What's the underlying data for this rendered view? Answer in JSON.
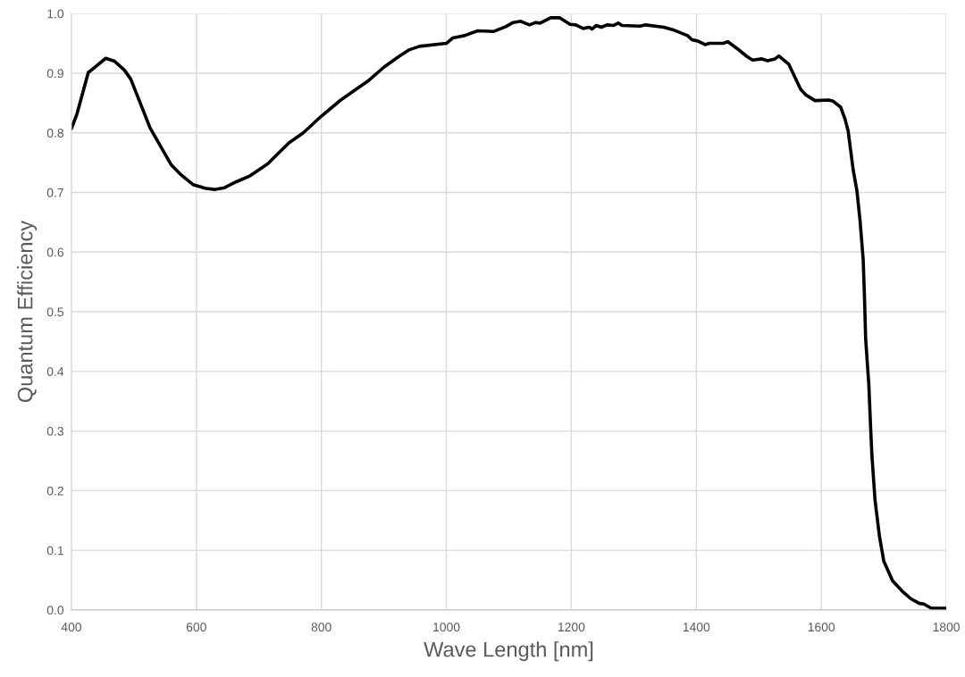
{
  "chart_data": {
    "type": "line",
    "xlabel": "Wave Length [nm]",
    "ylabel": "Quantum Efficiency",
    "series": [
      {
        "color": "#000000",
        "x": [
          400,
          409,
          427,
          433,
          455,
          469,
          485,
          495,
          526,
          560,
          574,
          595,
          614,
          629,
          645,
          664,
          686,
          714,
          748,
          771,
          800,
          831,
          857,
          876,
          900,
          924,
          940,
          957,
          1000,
          1010,
          1029,
          1050,
          1076,
          1095,
          1107,
          1119,
          1133,
          1143,
          1150,
          1167,
          1181,
          1198,
          1207,
          1219,
          1229,
          1233,
          1240,
          1248,
          1257,
          1267,
          1275,
          1281,
          1310,
          1319,
          1348,
          1362,
          1386,
          1393,
          1402,
          1414,
          1421,
          1443,
          1450,
          1467,
          1481,
          1490,
          1505,
          1514,
          1526,
          1532,
          1548,
          1567,
          1576,
          1590,
          1612,
          1619,
          1631,
          1638,
          1643,
          1651,
          1657,
          1662,
          1667,
          1669,
          1671,
          1676,
          1679,
          1681,
          1686,
          1693,
          1700,
          1714,
          1729,
          1743,
          1757,
          1764,
          1776,
          1800
        ],
        "values": [
          0.807,
          0.832,
          0.901,
          0.906,
          0.925,
          0.92,
          0.905,
          0.89,
          0.808,
          0.746,
          0.731,
          0.713,
          0.707,
          0.705,
          0.708,
          0.718,
          0.728,
          0.748,
          0.783,
          0.8,
          0.828,
          0.855,
          0.874,
          0.888,
          0.91,
          0.928,
          0.939,
          0.945,
          0.95,
          0.959,
          0.963,
          0.971,
          0.97,
          0.978,
          0.985,
          0.987,
          0.981,
          0.985,
          0.984,
          0.993,
          0.993,
          0.982,
          0.981,
          0.975,
          0.977,
          0.974,
          0.98,
          0.977,
          0.981,
          0.98,
          0.984,
          0.98,
          0.979,
          0.981,
          0.977,
          0.973,
          0.963,
          0.956,
          0.954,
          0.948,
          0.95,
          0.95,
          0.953,
          0.94,
          0.928,
          0.922,
          0.924,
          0.921,
          0.924,
          0.929,
          0.915,
          0.873,
          0.863,
          0.854,
          0.855,
          0.853,
          0.843,
          0.823,
          0.803,
          0.738,
          0.703,
          0.653,
          0.588,
          0.528,
          0.454,
          0.379,
          0.304,
          0.259,
          0.184,
          0.124,
          0.082,
          0.049,
          0.032,
          0.019,
          0.011,
          0.01,
          0.003,
          0.003
        ]
      }
    ],
    "xlim": [
      400,
      1800
    ],
    "xticks": [
      400,
      600,
      800,
      1000,
      1200,
      1400,
      1600,
      1800
    ],
    "ylim": [
      0,
      1
    ],
    "yticks": [
      {
        "value": 0,
        "label": "0.0"
      },
      {
        "value": 0.1,
        "label": "0.1"
      },
      {
        "value": 0.2,
        "label": "0.2"
      },
      {
        "value": 0.3,
        "label": "0.3"
      },
      {
        "value": 0.4,
        "label": "0.4"
      },
      {
        "value": 0.5,
        "label": "0.5"
      },
      {
        "value": 0.6,
        "label": "0.6"
      },
      {
        "value": 0.7,
        "label": "0.7"
      },
      {
        "value": 0.8,
        "label": "0.8"
      },
      {
        "value": 0.9,
        "label": "0.9"
      },
      {
        "value": 1,
        "label": "1.0"
      }
    ],
    "grid": true,
    "legend": false,
    "marker": "none",
    "line_style": "solid"
  }
}
